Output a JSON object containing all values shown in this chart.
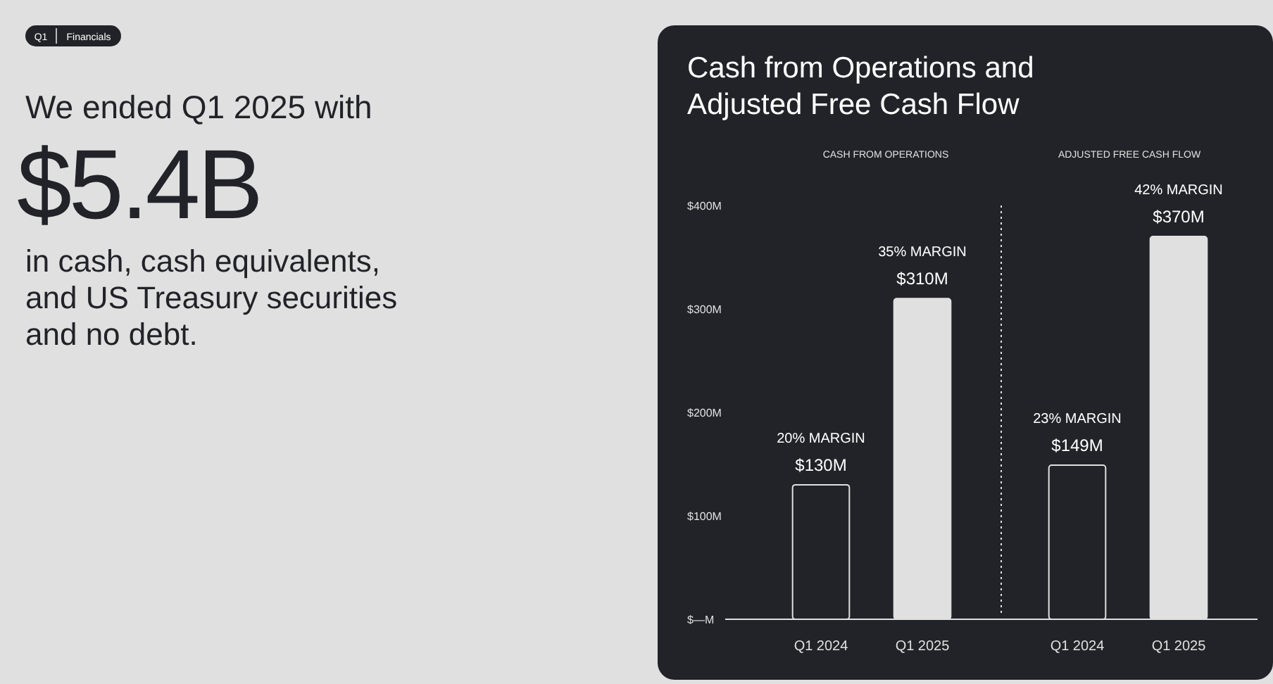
{
  "chart_data": [
    {
      "type": "other",
      "annotations": [
        "Q1",
        "Financials",
        "We ended Q1 2025 with",
        "$5.4B",
        "in cash, cash equivalents,",
        "and US Treasury securities",
        "and no debt."
      ]
    },
    {
      "type": "bar",
      "title": "Cash from Operations and Adjusted Free Cash Flow",
      "subtitle": "CASH FROM OPERATIONS",
      "categories": [
        "Q1 2024",
        "Q1 2025"
      ],
      "values": [
        130,
        310
      ],
      "colors": [
        "#222328",
        "#e0e0e0"
      ],
      "value_labels": [
        "$130M",
        "$310M"
      ],
      "ylim": [
        0,
        400
      ],
      "yticks": [
        {
          "value": 0,
          "label": "$—M"
        },
        {
          "value": 100,
          "label": "$100M"
        },
        {
          "value": 200,
          "label": "$200M"
        },
        {
          "value": 300,
          "label": "$300M"
        },
        {
          "value": 400,
          "label": "$400M"
        }
      ],
      "annotations": [
        {
          "text": "20% MARGIN",
          "x": "Q1 2024",
          "y": 130
        },
        {
          "text": "35% MARGIN",
          "x": "Q1 2025",
          "y": 310
        }
      ]
    },
    {
      "type": "bar",
      "subtitle": "ADJUSTED FREE CASH FLOW",
      "categories": [
        "Q1 2024",
        "Q1 2025"
      ],
      "values": [
        149,
        370
      ],
      "colors": [
        "#222328",
        "#e0e0e0"
      ],
      "value_labels": [
        "$149M",
        "$370M"
      ],
      "ylim": [
        0,
        400
      ],
      "tick_labels": "x",
      "annotations": [
        {
          "text": "23% MARGIN",
          "x": "Q1 2024",
          "y": 149
        },
        {
          "text": "42% MARGIN",
          "x": "Q1 2025",
          "y": 370
        }
      ]
    }
  ]
}
